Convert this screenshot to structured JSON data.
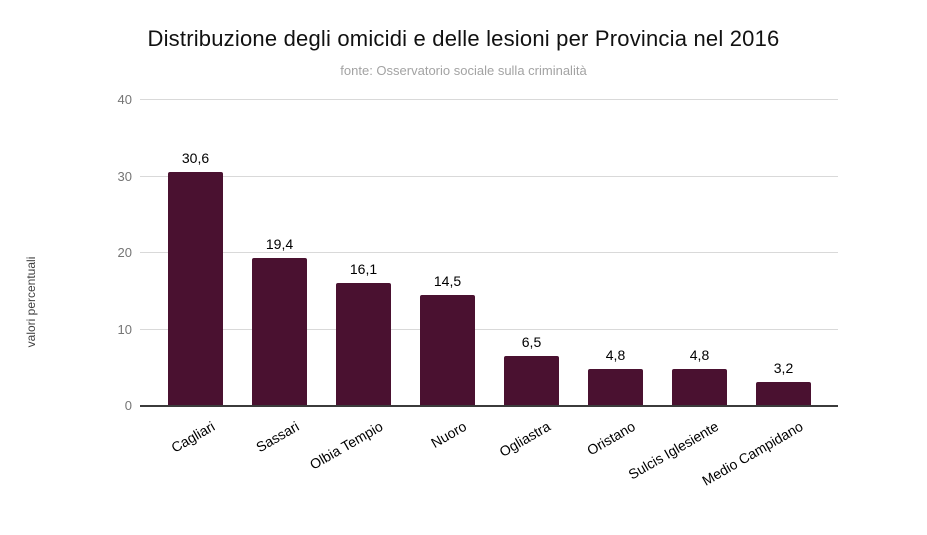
{
  "chart_data": {
    "type": "bar",
    "title": "Distribuzione degli omicidi e delle lesioni per Provincia nel 2016",
    "subtitle": "fonte: Osservatorio sociale sulla criminalità",
    "ylabel": "valori percentuali",
    "xlabel": "",
    "categories": [
      "Cagliari",
      "Sassari",
      "Olbia Tempio",
      "Nuoro",
      "Ogliastra",
      "Oristano",
      "Sulcis Iglesiente",
      "Medio Campidano"
    ],
    "values": [
      30.6,
      19.4,
      16.1,
      14.5,
      6.5,
      4.8,
      4.8,
      3.2
    ],
    "value_labels": [
      "30,6",
      "19,4",
      "16,1",
      "14,5",
      "6,5",
      "4,8",
      "4,8",
      "3,2"
    ],
    "ylim": [
      0,
      40
    ],
    "yticks": [
      0,
      10,
      20,
      30,
      40
    ],
    "ytick_labels": [
      "0",
      "10",
      "20",
      "30",
      "40"
    ],
    "grid": true,
    "legend": "none",
    "category_label_angle_deg": -30,
    "colors": {
      "bar": "#4a1130",
      "title": "#111111",
      "subtitle": "#a3a3a3",
      "tick_label": "#757575",
      "axis_title": "#424242",
      "gridline": "#d9d9d9",
      "baseline": "#3b3b3b",
      "data_label": "#000000",
      "category_label": "#000000",
      "background": "#ffffff"
    }
  }
}
